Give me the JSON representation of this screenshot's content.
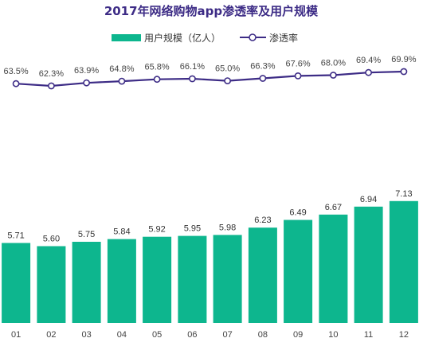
{
  "chart_data": {
    "type": "bar",
    "title": "2017年网络购物app渗透率及用户规模",
    "categories": [
      "01",
      "02",
      "03",
      "04",
      "05",
      "06",
      "07",
      "08",
      "09",
      "10",
      "11",
      "12"
    ],
    "series": [
      {
        "name": "用户规模（亿人）",
        "type": "bar",
        "values": [
          5.71,
          5.6,
          5.75,
          5.84,
          5.92,
          5.95,
          5.98,
          6.23,
          6.49,
          6.67,
          6.94,
          7.13
        ],
        "labels": [
          "5.71",
          "5.60",
          "5.75",
          "5.84",
          "5.92",
          "5.95",
          "5.98",
          "6.23",
          "6.49",
          "6.67",
          "6.94",
          "7.13"
        ]
      },
      {
        "name": "渗透率",
        "type": "line",
        "values": [
          63.5,
          62.3,
          63.9,
          64.8,
          65.8,
          66.1,
          65.0,
          66.3,
          67.6,
          68.0,
          69.4,
          69.9
        ],
        "labels": [
          "63.5%",
          "62.3%",
          "63.9%",
          "64.8%",
          "65.8%",
          "66.1%",
          "65.0%",
          "66.3%",
          "67.6%",
          "68.0%",
          "69.4%",
          "69.9%"
        ]
      }
    ],
    "legend_position": "top-center",
    "grid": false
  },
  "colors": {
    "bar": "#0DB68E",
    "line": "#3D2C86",
    "title": "#3D2C86"
  }
}
